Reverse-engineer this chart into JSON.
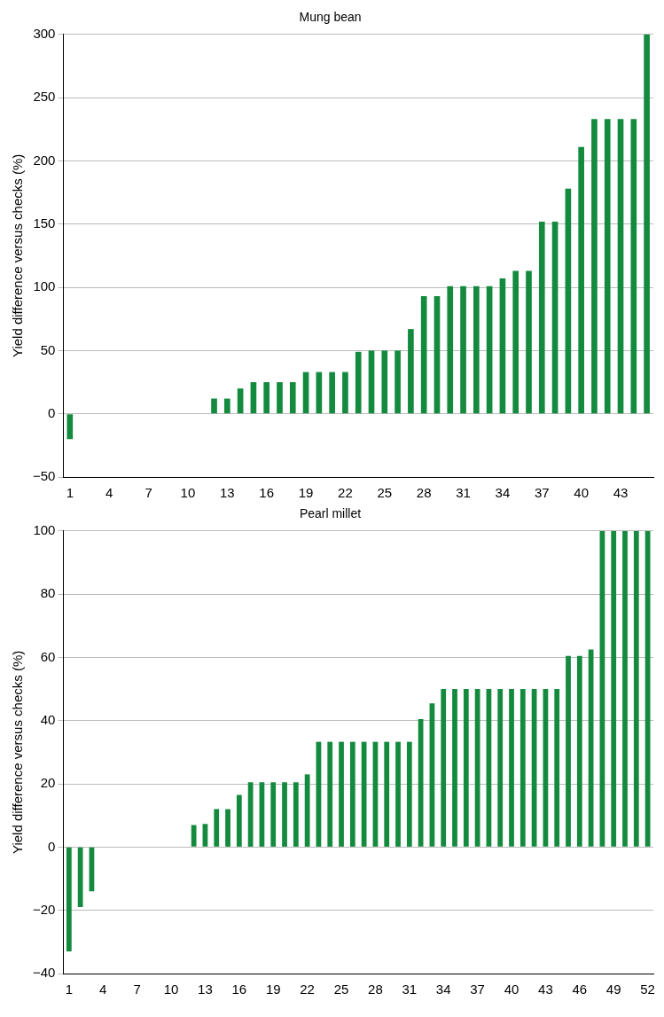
{
  "chart_data": [
    {
      "type": "bar",
      "title": "Mung bean",
      "ylabel": "Yield difference versus checks (%)",
      "color": "#138a3e",
      "grid": "y",
      "categories": [
        "1",
        null,
        null,
        "4",
        null,
        null,
        "7",
        null,
        null,
        "10",
        null,
        null,
        "13",
        null,
        null,
        "16",
        null,
        null,
        "19",
        null,
        null,
        "22",
        null,
        null,
        "25",
        null,
        null,
        "28",
        null,
        null,
        "31",
        null,
        null,
        "34",
        null,
        null,
        "37",
        null,
        null,
        "40",
        null,
        null,
        "43",
        null,
        null
      ],
      "values": [
        -20,
        0,
        0,
        0,
        0,
        0,
        0,
        0,
        0,
        0,
        0,
        12,
        12,
        20,
        25,
        25,
        25,
        25,
        33,
        33,
        33,
        33,
        49,
        50,
        50,
        50,
        67,
        93,
        93,
        101,
        101,
        101,
        101,
        107,
        113,
        113,
        152,
        152,
        178,
        211,
        233,
        233,
        233,
        233,
        300
      ],
      "ylim": [
        -50,
        300
      ],
      "yticks": [
        {
          "value": -50,
          "label": "−50"
        },
        0,
        50,
        100,
        150,
        200,
        250,
        300
      ]
    },
    {
      "type": "bar",
      "title": "Pearl millet",
      "ylabel": "Yield difference versus checks (%)",
      "color": "#138a3e",
      "grid": "y",
      "categories": [
        "1",
        null,
        null,
        "4",
        null,
        null,
        "7",
        null,
        null,
        "10",
        null,
        null,
        "13",
        null,
        null,
        "16",
        null,
        null,
        "19",
        null,
        null,
        "22",
        null,
        null,
        "25",
        null,
        null,
        "28",
        null,
        null,
        "31",
        null,
        null,
        "34",
        null,
        null,
        "37",
        null,
        null,
        "40",
        null,
        null,
        "43",
        null,
        null,
        "46",
        null,
        null,
        "49",
        null,
        null,
        "52"
      ],
      "values": [
        -33,
        -19,
        -14,
        0,
        0,
        0,
        0,
        0,
        0,
        0,
        0,
        7,
        7.3,
        12,
        12,
        16.5,
        20.5,
        20.5,
        20.5,
        20.5,
        20.5,
        23,
        33.3,
        33.3,
        33.3,
        33.3,
        33.3,
        33.3,
        33.3,
        33.3,
        33.3,
        40.5,
        45.5,
        50,
        50,
        50,
        50,
        50,
        50,
        50,
        50,
        50,
        50,
        50,
        60.5,
        60.5,
        62.5,
        100,
        100,
        100,
        100,
        100
      ],
      "ylim": [
        -40,
        100
      ],
      "yticks": [
        {
          "value": -40,
          "label": "−40"
        },
        {
          "value": -20,
          "label": "−20"
        },
        0,
        20,
        40,
        60,
        80,
        100
      ]
    }
  ]
}
